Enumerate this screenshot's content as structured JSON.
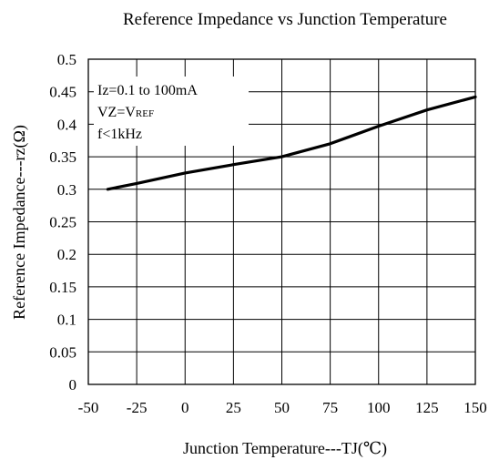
{
  "chart_data": {
    "type": "line",
    "title": "Reference Impedance vs Junction Temperature",
    "xlabel": "Junction Temperature---TJ(℃)",
    "ylabel": "Reference Impedance---rz(Ω)",
    "xlim": [
      -50,
      150
    ],
    "ylim": [
      0,
      0.5
    ],
    "x_ticks": [
      -50,
      -25,
      0,
      25,
      50,
      75,
      100,
      125,
      150
    ],
    "x_tick_labels": [
      "-50",
      "-25",
      "0",
      "25",
      "50",
      "75",
      "100",
      "125",
      "150"
    ],
    "y_ticks": [
      0,
      0.05,
      0.1,
      0.15,
      0.2,
      0.25,
      0.3,
      0.35,
      0.4,
      0.45,
      0.5
    ],
    "y_tick_labels": [
      "0",
      "0.05",
      "0.1",
      "0.15",
      "0.2",
      "0.25",
      "0.3",
      "0.35",
      "0.4",
      "0.45",
      "0.5"
    ],
    "grid": true,
    "series": [
      {
        "x": [
          -40,
          -25,
          0,
          25,
          50,
          75,
          100,
          125,
          150
        ],
        "y": [
          0.3,
          0.309,
          0.325,
          0.338,
          0.35,
          0.37,
          0.397,
          0.422,
          0.442
        ]
      }
    ],
    "annotation": {
      "line1": "Iz=0.1 to 100mA",
      "line2_main": "VZ=V",
      "line2_sub": "REF",
      "line3": "f<1kHz"
    }
  },
  "colors": {
    "line": "#000000",
    "grid": "#000000",
    "background": "#ffffff"
  }
}
